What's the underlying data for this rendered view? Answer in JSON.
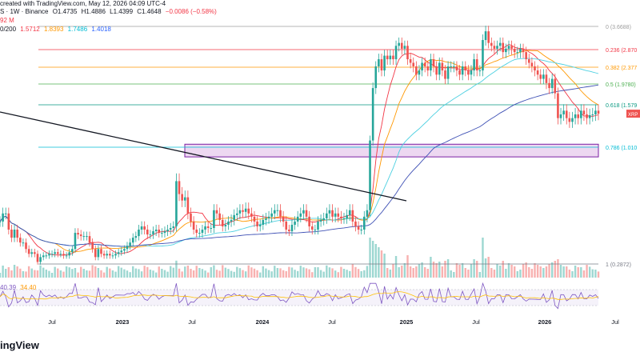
{
  "header": {
    "line1_text": "created with TradingView.com, May 12, 2026 04:09 UTC-4",
    "line2_prefix": "S · 1W · Binance",
    "ohlc": {
      "open": "O1.4735",
      "high": "H1.4886",
      "low": "L1.4399",
      "close": "C1.4648",
      "change": "−0.0086 (−0.58%)"
    },
    "line3_text": "92 M",
    "ma_prefix": "0/200",
    "ma_values": [
      "1.5712",
      "1.8393",
      "1.7486",
      "1.4018"
    ]
  },
  "rsi_header": {
    "values": [
      "40.39",
      "34.40"
    ]
  },
  "brand": "ingView",
  "price_tag": "XRP",
  "colors": {
    "up": "#26a69a",
    "down": "#ef5350",
    "ma_red": "#f23645",
    "ma_orange": "#ff9800",
    "ma_cyan": "#4dd0e1",
    "ma_blue": "#3f51b5",
    "rsi": "#7e57c2",
    "rsi_ma": "#ffc107"
  },
  "chart_data": {
    "type": "candlestick",
    "interval": "1W",
    "x_ticks": [
      "Jul",
      "2023",
      "Jul",
      "2024",
      "Jul",
      "2025",
      "Jul",
      "2026",
      "Jul"
    ],
    "fib_levels": [
      {
        "label": "0 (3.6688)",
        "value": 3.6688,
        "color": "#9e9e9e"
      },
      {
        "label": "0.236 (2.870",
        "value": 2.87,
        "color": "#f23645"
      },
      {
        "label": "0.382 (2.377",
        "value": 2.377,
        "color": "#ff9800"
      },
      {
        "label": "0.5 (1.9780)",
        "value": 1.978,
        "color": "#4caf50"
      },
      {
        "label": "0.618 (1.579",
        "value": 1.579,
        "color": "#089981"
      },
      {
        "label": "0.786 (1.010",
        "value": 1.01,
        "color": "#00bcd4"
      },
      {
        "label": "1 (0.2872)",
        "value": 0.2872,
        "color": "#787b86"
      }
    ],
    "weekly_close_approx": [
      0.55,
      0.6,
      0.6,
      0.5,
      0.45,
      0.5,
      0.45,
      0.42,
      0.42,
      0.38,
      0.35,
      0.36,
      0.35,
      0.3,
      0.33,
      0.34,
      0.34,
      0.35,
      0.35,
      0.36,
      0.35,
      0.35,
      0.34,
      0.34,
      0.36,
      0.38,
      0.48,
      0.47,
      0.46,
      0.46,
      0.46,
      0.42,
      0.38,
      0.33,
      0.38,
      0.35,
      0.34,
      0.35,
      0.34,
      0.34,
      0.35,
      0.36,
      0.37,
      0.38,
      0.4,
      0.42,
      0.45,
      0.46,
      0.5,
      0.52,
      0.5,
      0.47,
      0.47,
      0.49,
      0.5,
      0.48,
      0.48,
      0.49,
      0.5,
      0.51,
      0.52,
      0.8,
      0.72,
      0.68,
      0.7,
      0.6,
      0.55,
      0.5,
      0.48,
      0.48,
      0.5,
      0.52,
      0.51,
      0.51,
      0.62,
      0.6,
      0.56,
      0.52,
      0.53,
      0.55,
      0.56,
      0.59,
      0.6,
      0.62,
      0.61,
      0.63,
      0.6,
      0.58,
      0.55,
      0.52,
      0.53,
      0.56,
      0.57,
      0.58,
      0.6,
      0.62,
      0.62,
      0.58,
      0.55,
      0.5,
      0.49,
      0.53,
      0.55,
      0.58,
      0.6,
      0.62,
      0.58,
      0.52,
      0.5,
      0.5,
      0.55,
      0.56,
      0.57,
      0.6,
      0.62,
      0.58,
      0.6,
      0.58,
      0.57,
      0.57,
      0.59,
      0.62,
      0.55,
      0.52,
      0.5,
      0.5,
      0.58,
      0.62,
      1.1,
      1.9,
      2.4,
      2.6,
      2.3,
      2.7,
      2.6,
      2.7,
      2.6,
      3.0,
      3.1,
      2.9,
      3.0,
      2.6,
      2.5,
      2.4,
      2.2,
      2.3,
      2.5,
      2.4,
      2.3,
      2.6,
      2.4,
      2.2,
      2.5,
      2.3,
      2.1,
      2.4,
      2.4,
      2.4,
      2.3,
      2.2,
      2.4,
      2.3,
      2.2,
      2.3,
      2.6,
      2.3,
      2.3,
      3.2,
      3.5,
      3.1,
      3.0,
      2.9,
      3.0,
      3.1,
      2.8,
      2.9,
      3.0,
      2.9,
      2.8,
      2.8,
      2.9,
      2.8,
      2.6,
      2.5,
      2.4,
      2.3,
      2.2,
      2.1,
      2.2,
      2.0,
      1.9,
      2.1,
      1.8,
      1.4,
      1.45,
      1.5,
      1.4,
      1.35,
      1.4,
      1.45,
      1.4,
      1.5,
      1.45,
      1.4,
      1.44,
      1.45,
      1.5,
      1.46
    ],
    "trendline": [
      {
        "x_index": 0,
        "y": 1.55
      },
      {
        "x_index": 130,
        "y": 0.5
      }
    ],
    "highlight_zone": [
      0.95,
      1.05
    ]
  }
}
